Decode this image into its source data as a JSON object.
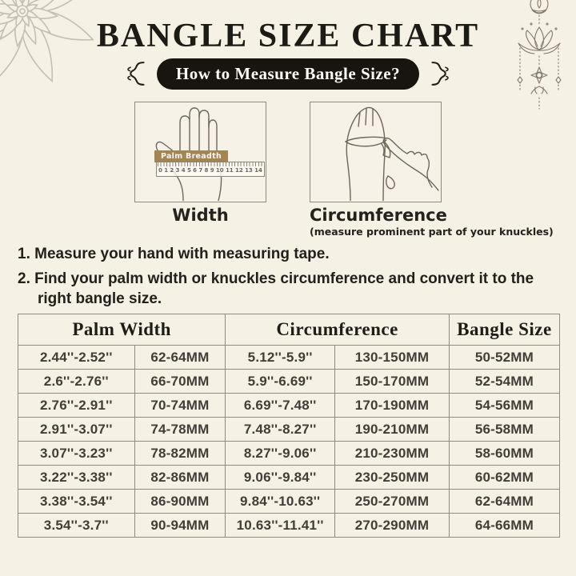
{
  "header": {
    "title": "BANGLE SIZE CHART",
    "subtitle_pill": "How to Measure Bangle Size?"
  },
  "illustrations": {
    "width": {
      "label": "Width",
      "ruler_label": "Palm Breadth",
      "ruler_numbers": [
        "0",
        "1",
        "2",
        "3",
        "4",
        "5",
        "6",
        "7",
        "8",
        "9",
        "10",
        "11",
        "12",
        "13",
        "14"
      ]
    },
    "circumference": {
      "label": "Circumference",
      "note": "(measure prominent part of your knuckles)"
    }
  },
  "instructions": [
    "1. Measure your hand with measuring tape.",
    "2. Find your palm width or knuckles circumference and convert it to the right bangle size."
  ],
  "table": {
    "headers": [
      "Palm Width",
      "Circumference",
      "Bangle Size"
    ],
    "rows": [
      [
        "2.44''-2.52''",
        "62-64MM",
        "5.12''-5.9''",
        "130-150MM",
        "50-52MM"
      ],
      [
        "2.6''-2.76''",
        "66-70MM",
        "5.9''-6.69''",
        "150-170MM",
        "52-54MM"
      ],
      [
        "2.76''-2.91''",
        "70-74MM",
        "6.69''-7.48''",
        "170-190MM",
        "54-56MM"
      ],
      [
        "2.91''-3.07''",
        "74-78MM",
        "7.48''-8.27''",
        "190-210MM",
        "56-58MM"
      ],
      [
        "3.07''-3.23''",
        "78-82MM",
        "8.27''-9.06''",
        "210-230MM",
        "58-60MM"
      ],
      [
        "3.22''-3.38''",
        "82-86MM",
        "9.06''-9.84''",
        "230-250MM",
        "60-62MM"
      ],
      [
        "3.38''-3.54''",
        "86-90MM",
        "9.84''-10.63''",
        "250-270MM",
        "62-64MM"
      ],
      [
        "3.54''-3.7''",
        "90-94MM",
        "10.63''-11.41''",
        "270-290MM",
        "64-66MM"
      ]
    ]
  },
  "colors": {
    "background": "#f5f1e4",
    "pill_black": "#181511",
    "pill_text": "#fdfcf6",
    "ruler_label_tan": "#a28455",
    "table_border": "#8f8d82",
    "line_art": "#6f665a",
    "mandala_gray": "#c3bfb4",
    "ornament_gray": "#837a6c"
  }
}
